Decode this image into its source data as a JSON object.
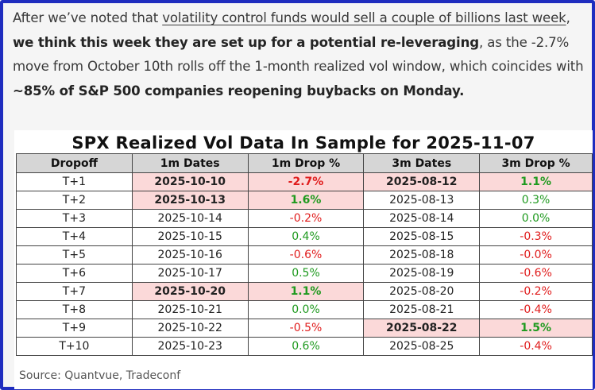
{
  "paragraph": {
    "p1": "After we’ve noted that ",
    "link": "volatility control funds would sell a couple of billions last week",
    "p2": ", ",
    "bold1": "we think this week they are set up for a potential re-leveraging",
    "p3": ", as the -2.7% move from October 10th rolls off the 1-month realized vol window, which coincides with ",
    "bold2": "~85% of S&P 500 companies reopening buybacks on Monday."
  },
  "table": {
    "title": "SPX Realized Vol Data In Sample for 2025-11-07",
    "headers": [
      "Dropoff",
      "1m Dates",
      "1m Drop %",
      "3m Dates",
      "3m Drop %"
    ],
    "rows": [
      {
        "dropoff": "T+1",
        "d1": "2025-10-10",
        "p1": "-2.7%",
        "d3": "2025-08-12",
        "p3": "1.1%"
      },
      {
        "dropoff": "T+2",
        "d1": "2025-10-13",
        "p1": "1.6%",
        "d3": "2025-08-13",
        "p3": "0.3%"
      },
      {
        "dropoff": "T+3",
        "d1": "2025-10-14",
        "p1": "-0.2%",
        "d3": "2025-08-14",
        "p3": "0.0%"
      },
      {
        "dropoff": "T+4",
        "d1": "2025-10-15",
        "p1": "0.4%",
        "d3": "2025-08-15",
        "p3": "-0.3%"
      },
      {
        "dropoff": "T+5",
        "d1": "2025-10-16",
        "p1": "-0.6%",
        "d3": "2025-08-18",
        "p3": "-0.0%"
      },
      {
        "dropoff": "T+6",
        "d1": "2025-10-17",
        "p1": "0.5%",
        "d3": "2025-08-19",
        "p3": "-0.6%"
      },
      {
        "dropoff": "T+7",
        "d1": "2025-10-20",
        "p1": "1.1%",
        "d3": "2025-08-20",
        "p3": "-0.2%"
      },
      {
        "dropoff": "T+8",
        "d1": "2025-10-21",
        "p1": "0.0%",
        "d3": "2025-08-21",
        "p3": "-0.4%"
      },
      {
        "dropoff": "T+9",
        "d1": "2025-10-22",
        "p1": "-0.5%",
        "d3": "2025-08-22",
        "p3": "1.5%"
      },
      {
        "dropoff": "T+10",
        "d1": "2025-10-23",
        "p1": "0.6%",
        "d3": "2025-08-25",
        "p3": "-0.4%"
      }
    ],
    "highlight_1m_rows": [
      0,
      1,
      6
    ],
    "highlight_3m_rows": [
      0,
      8
    ],
    "source": "Source: Quantvue, Tradeconf"
  },
  "colors": {
    "positive": "#1f9a1f",
    "negative": "#e01c1c",
    "highlight": "#fbd9d9",
    "frame": "#1f2dbf"
  }
}
